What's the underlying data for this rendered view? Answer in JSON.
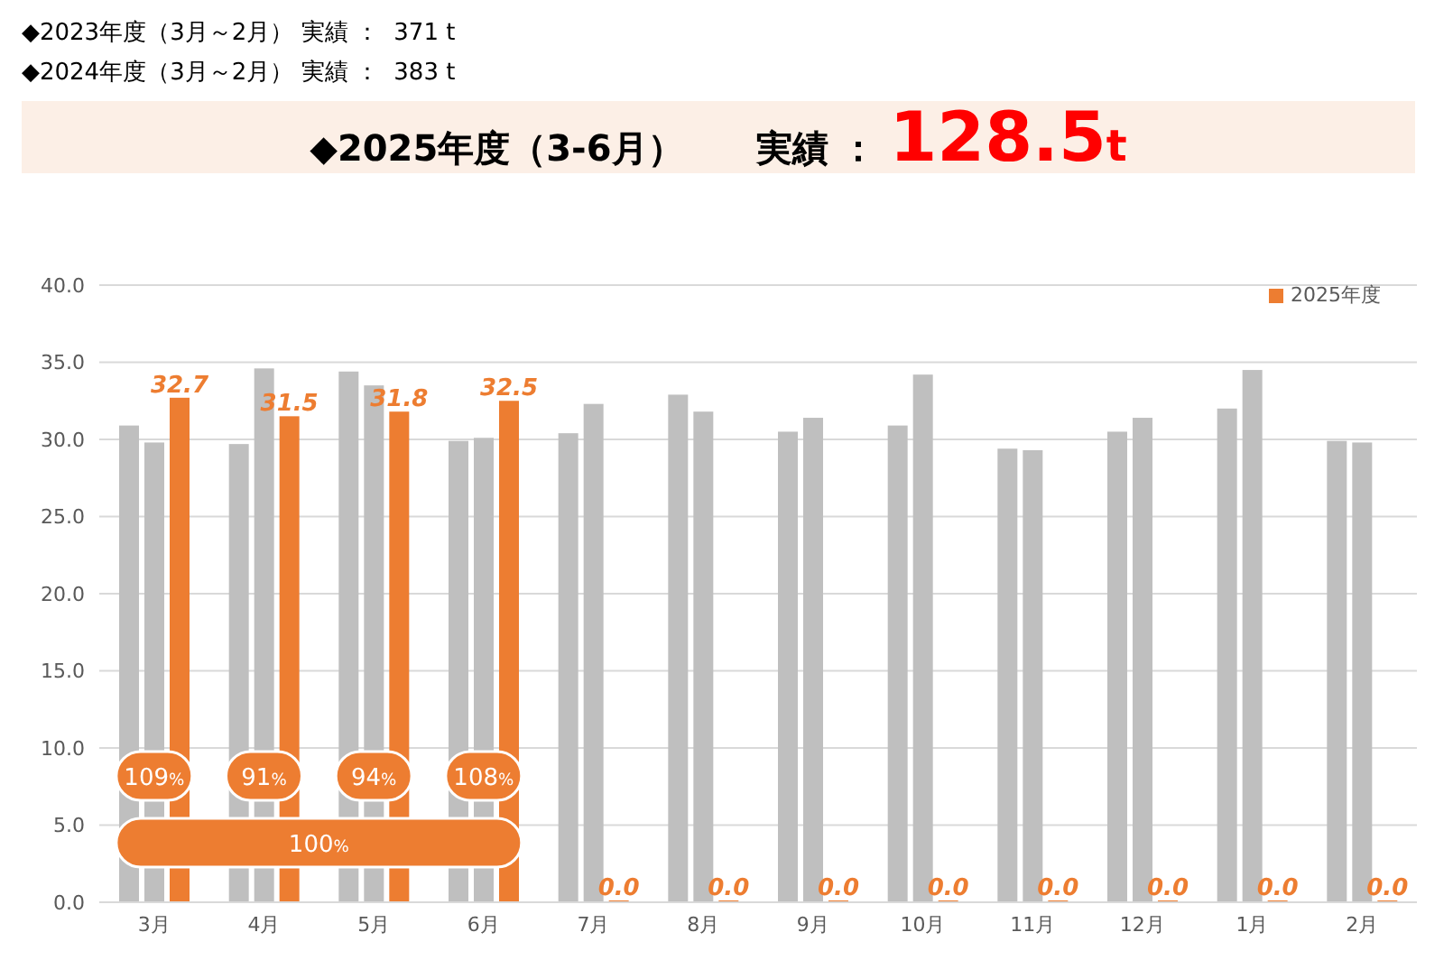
{
  "chart_data": {
    "type": "bar",
    "title": "◆2025年度（3-6月）　　実績 ： 128.5t",
    "subtitle": "◆2023年度（3月～2月） 実績 ：  371 t\n◆2024年度（3月～2月） 実績 ：  383 t",
    "categories": [
      "3月",
      "4月",
      "5月",
      "6月",
      "7月",
      "8月",
      "9月",
      "10月",
      "11月",
      "12月",
      "1月",
      "2月"
    ],
    "series": [
      {
        "color": "#bfbfbf",
        "values": [
          30.9,
          29.7,
          34.4,
          29.9,
          30.4,
          32.9,
          30.5,
          30.9,
          29.4,
          30.5,
          32.0,
          29.9
        ]
      },
      {
        "color": "#bfbfbf",
        "values": [
          29.8,
          34.6,
          33.5,
          30.1,
          32.3,
          31.8,
          31.4,
          34.2,
          29.3,
          31.4,
          34.5,
          29.8
        ]
      },
      {
        "name": "2025年度",
        "color": "#ed7d31",
        "values": [
          32.7,
          31.5,
          31.8,
          32.5,
          0,
          0,
          0,
          0,
          0,
          0,
          0,
          0
        ],
        "value_labels": [
          "32.7",
          "31.5",
          "31.8",
          "32.5",
          "0.0",
          "0.0",
          "0.0",
          "0.0",
          "0.0",
          "0.0",
          "0.0",
          "0.0"
        ]
      }
    ],
    "ylim": [
      0,
      40
    ],
    "yticks": [
      {
        "value": 0,
        "label": "0.0"
      },
      {
        "value": 5,
        "label": "5.0"
      },
      {
        "value": 10,
        "label": "10.0"
      },
      {
        "value": 15,
        "label": "15.0"
      },
      {
        "value": 20,
        "label": "20.0"
      },
      {
        "value": 25,
        "label": "25.0"
      },
      {
        "value": 30,
        "label": "30.0"
      },
      {
        "value": 35,
        "label": "35.0"
      },
      {
        "value": 40,
        "label": "40.0"
      }
    ],
    "grid": "y",
    "legend": "top right",
    "annotations": [
      "109%",
      "91%",
      "94%",
      "108%",
      "100%"
    ]
  }
}
